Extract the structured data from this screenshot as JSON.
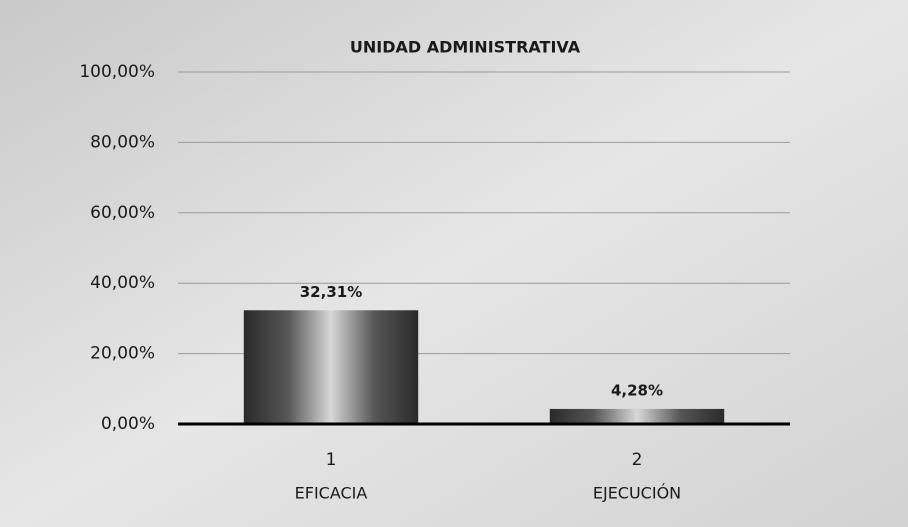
{
  "chart_data": {
    "type": "bar",
    "title": "UNIDAD ADMINISTRATIVA",
    "categories": [
      "1",
      "2"
    ],
    "category_names": [
      "EFICACIA",
      "EJECUCIÓN"
    ],
    "values": [
      32.31,
      4.28
    ],
    "value_labels": [
      "32,31%",
      "4,28%"
    ],
    "ylim": [
      0,
      100
    ],
    "yticks": [
      {
        "value": 0,
        "label": "0,00%"
      },
      {
        "value": 20,
        "label": "20,00%"
      },
      {
        "value": 40,
        "label": "40,00%"
      },
      {
        "value": 60,
        "label": "60,00%"
      },
      {
        "value": 80,
        "label": "80,00%"
      },
      {
        "value": 100,
        "label": "100,00%"
      }
    ],
    "grid": true,
    "color": "#3a3a3a"
  }
}
